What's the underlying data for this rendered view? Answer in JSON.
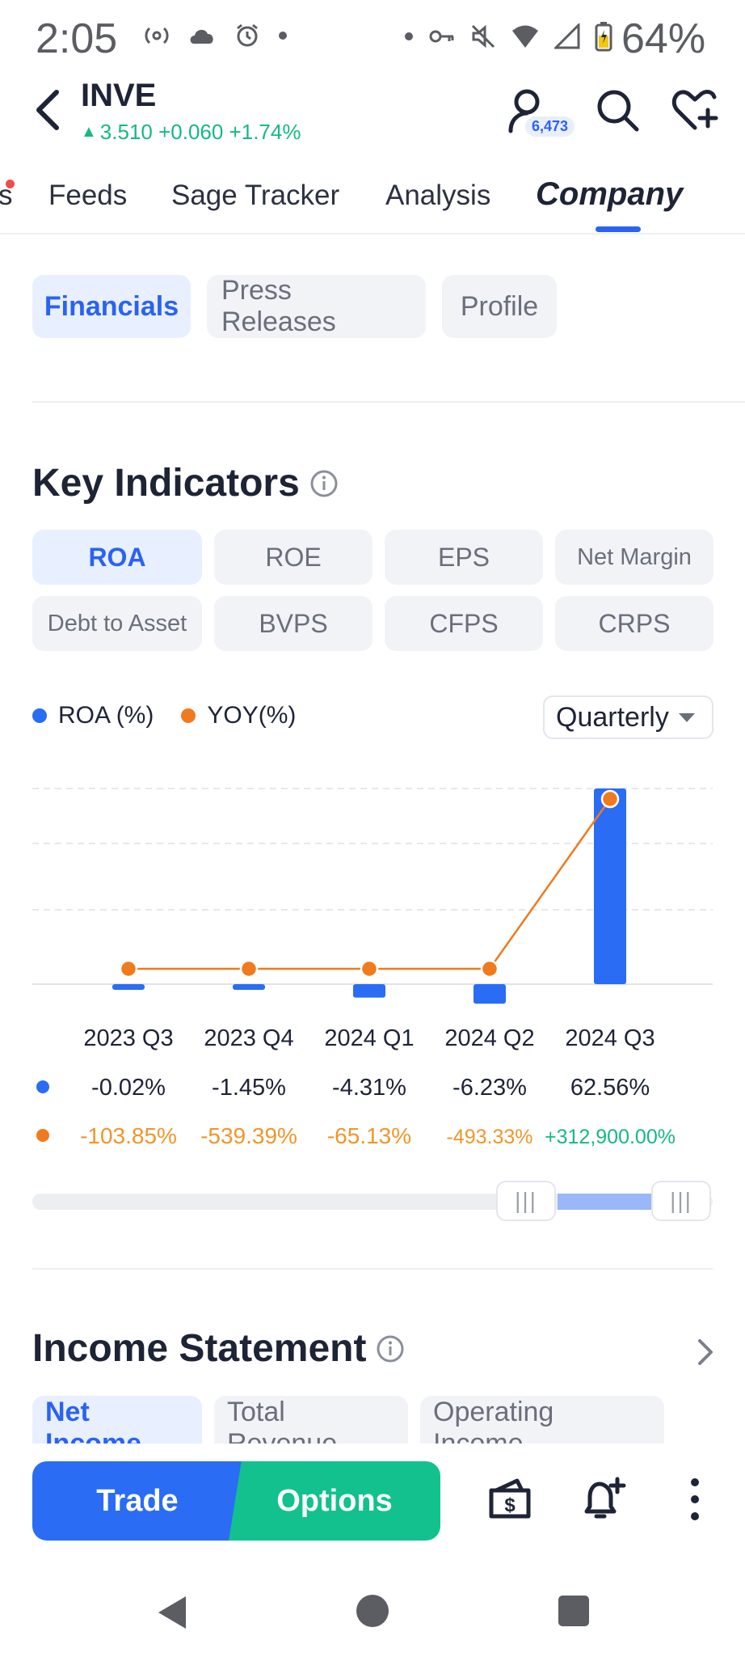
{
  "status_bar": {
    "time": "2:05",
    "battery": "64%",
    "icons": [
      "hotspot-icon",
      "cloud-icon",
      "alarm-icon",
      "dot-icon",
      "dot-icon",
      "key-icon",
      "mute-icon",
      "wifi-icon",
      "signal-icon",
      "battery-icon"
    ]
  },
  "header": {
    "ticker": "INVE",
    "quote": "3.510 +0.060 +1.74%",
    "quote_color": "#16b887",
    "user_count": "6,473"
  },
  "tabs": [
    {
      "label": "s"
    },
    {
      "label": "Feeds"
    },
    {
      "label": "Sage Tracker"
    },
    {
      "label": "Analysis"
    },
    {
      "label": "Company",
      "active": true
    }
  ],
  "subtabs": [
    {
      "label": "Financials",
      "active": true
    },
    {
      "label": "Press Releases"
    },
    {
      "label": "Profile"
    }
  ],
  "key_indicators": {
    "title": "Key Indicators",
    "buttons": [
      "ROA",
      "ROE",
      "EPS",
      "Net Margin",
      "Debt to Asset",
      "BVPS",
      "CFPS",
      "CRPS"
    ],
    "active": "ROA",
    "legend": [
      "ROA (%)",
      "YOY(%)"
    ],
    "period": "Quarterly"
  },
  "colors": {
    "accent": "#2a63f2",
    "roa_bar": "#2a6cf4",
    "yoy_line": "#f07a1e",
    "yoy_text": "#f0962a",
    "positive": "#16b887"
  },
  "chart_data": {
    "type": "bar",
    "categories": [
      "2023 Q3",
      "2023 Q4",
      "2024 Q1",
      "2024 Q2",
      "2024 Q3"
    ],
    "series": [
      {
        "name": "ROA (%)",
        "type": "bar",
        "values": [
          -0.02,
          -1.45,
          -4.31,
          -6.23,
          62.56
        ]
      },
      {
        "name": "YOY(%)",
        "type": "line",
        "values": [
          -103.85,
          -539.39,
          -65.13,
          -493.33,
          312900.0
        ]
      }
    ],
    "roa_labels": [
      "-0.02%",
      "-1.45%",
      "-4.31%",
      "-6.23%",
      "62.56%"
    ],
    "yoy_labels": [
      "-103.85%",
      "-539.39%",
      "-65.13%",
      "-493.33%",
      "+312,900.00%"
    ],
    "grid": true,
    "legend_position": "top-left"
  },
  "income_statement": {
    "title": "Income Statement",
    "tabs": [
      "Net Income",
      "Total Revenue",
      "Operating Income"
    ],
    "active": "Net Income"
  },
  "actions": {
    "trade": "Trade",
    "options": "Options"
  }
}
